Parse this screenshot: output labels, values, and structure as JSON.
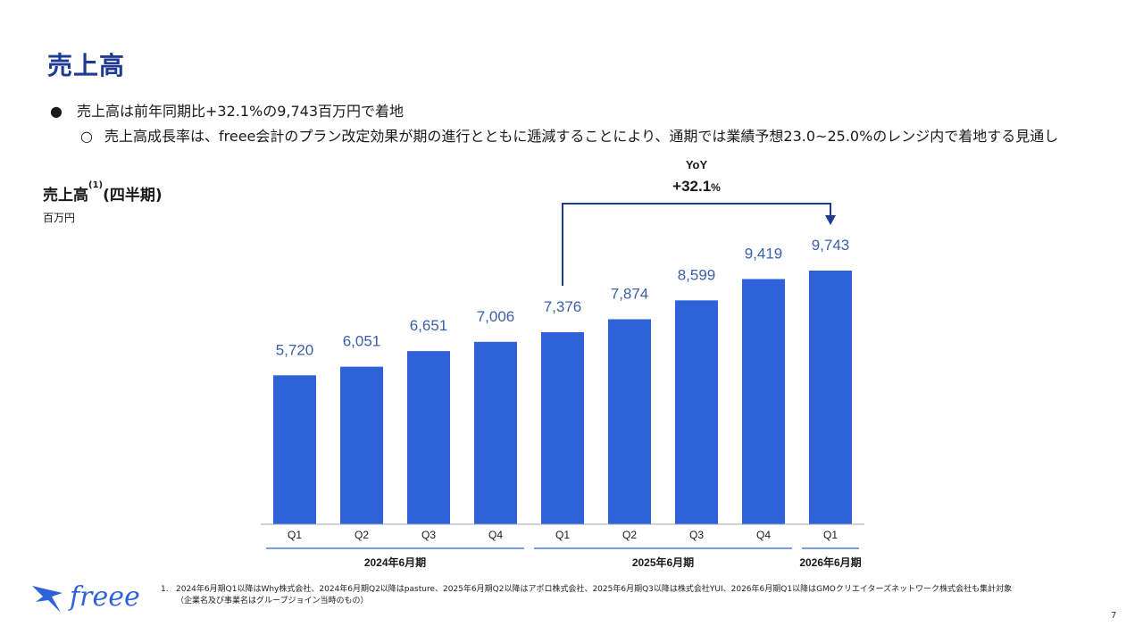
{
  "slide": {
    "title": "売上高",
    "bullet_mark": "●",
    "sub_bullet_mark": "○",
    "bullet_main": "売上高は前年同期比+32.1%の9,743百万円で着地",
    "bullet_sub": "売上高成長率は、freee会計のプラン改定効果が期の進行とともに逓減することにより、通期では業績予想23.0~25.0%のレンジ内で着地する見通し",
    "page_number": "7",
    "logo_text": "freee"
  },
  "chart_data": {
    "type": "bar",
    "title": "売上高",
    "title_sup": "(1)",
    "title_suffix": "(四半期)",
    "unit": "百万円",
    "categories": [
      "Q1",
      "Q2",
      "Q3",
      "Q4",
      "Q1",
      "Q2",
      "Q3",
      "Q4",
      "Q1"
    ],
    "values": [
      5720,
      6051,
      6651,
      7006,
      7376,
      7874,
      8599,
      9419,
      9743
    ],
    "value_labels": [
      "5,720",
      "6,051",
      "6,651",
      "7,006",
      "7,376",
      "7,874",
      "8,599",
      "9,419",
      "9,743"
    ],
    "groups": [
      {
        "label": "2024年6月期",
        "count": 4
      },
      {
        "label": "2025年6月期",
        "count": 4
      },
      {
        "label": "2026年6月期",
        "count": 1
      }
    ],
    "ylim": [
      0,
      10500
    ],
    "bar_color": "#2f62d9",
    "label_color": "#3b5fa8",
    "annotation": {
      "label": "YoY",
      "value": "+32.1",
      "unit": "%",
      "from_index": 4,
      "to_index": 8,
      "color": "#1f3a93"
    }
  },
  "footnote": {
    "number": "1.",
    "line1": "2024年6月期Q1以降はWhy株式会社、2024年6月期Q2以降はpasture、2025年6月期Q2以降はアポロ株式会社、2025年6月期Q3以降は株式会社YUI、2026年6月期Q1以降はGMOクリエイターズネットワーク株式会社も集計対象",
    "line2": "（企業名及び事業名はグループジョイン当時のもの）"
  }
}
